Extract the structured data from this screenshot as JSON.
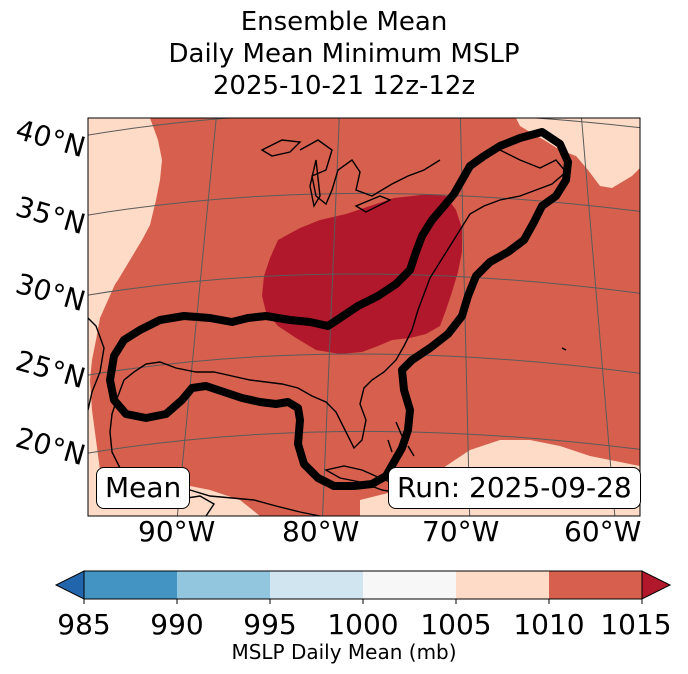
{
  "title": {
    "line1": "Ensemble Mean",
    "line2": "Daily Mean Minimum MSLP",
    "line3": "2025-10-21 12z-12z"
  },
  "map": {
    "lat_labels": [
      "40°N",
      "35°N",
      "30°N",
      "25°N",
      "20°N"
    ],
    "lon_labels": [
      "90°W",
      "80°W",
      "70°W",
      "60°W"
    ],
    "mean_label": "Mean",
    "run_label": "Run: 2025-09-28",
    "colors": {
      "band_1005_1010": "#fddbc7",
      "band_1010_1015": "#d6604d",
      "band_above_1015": "#b2182b",
      "contour": "#000000",
      "coast": "#000000",
      "grid": "#5a5a5a"
    }
  },
  "colorbar": {
    "ticks": [
      "985",
      "990",
      "995",
      "1000",
      "1005",
      "1010",
      "1015"
    ],
    "colors": [
      "#4393c3",
      "#92c5de",
      "#d1e5f0",
      "#f7f7f7",
      "#fddbc7",
      "#d6604d"
    ],
    "under_color": "#2166ac",
    "over_color": "#b2182b",
    "label": "MSLP Daily Mean (mb)"
  }
}
